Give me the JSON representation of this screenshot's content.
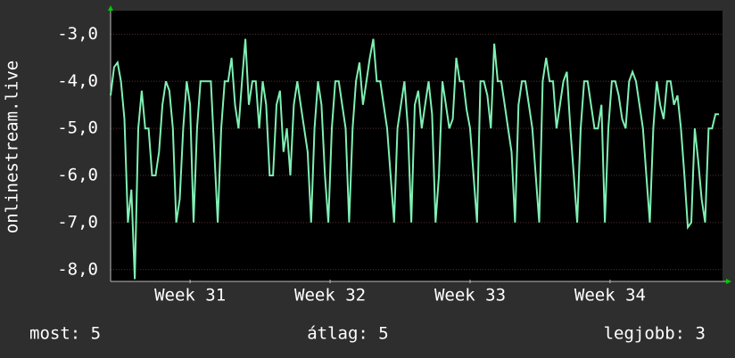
{
  "chart_data": {
    "type": "line",
    "ylabel": "onlinestream.live",
    "color": "#7ff0b4",
    "grid": true,
    "values": [
      -4.3,
      -3.7,
      -3.6,
      -4,
      -4.8,
      -7,
      -6.3,
      -8.2,
      -5,
      -4.2,
      -5,
      -5,
      -6,
      -6,
      -5.5,
      -4.5,
      -4,
      -4.2,
      -5,
      -7,
      -6.5,
      -5,
      -4,
      -4.5,
      -7,
      -5,
      -4,
      -4,
      -4,
      -4,
      -5.5,
      -7,
      -5,
      -4,
      -4,
      -3.5,
      -4.5,
      -5,
      -4,
      -3.1,
      -4.5,
      -4,
      -4,
      -5,
      -4,
      -4.5,
      -6,
      -6,
      -4.5,
      -4.2,
      -5.5,
      -5,
      -6,
      -4.5,
      -4,
      -4.5,
      -5,
      -5.5,
      -7,
      -5,
      -4,
      -4.5,
      -6,
      -7,
      -5,
      -4,
      -4,
      -4.5,
      -5,
      -7,
      -5,
      -4,
      -3.6,
      -4.5,
      -4,
      -3.5,
      -3.1,
      -4,
      -4,
      -4.5,
      -5,
      -6,
      -7,
      -5,
      -4.5,
      -4,
      -5,
      -7,
      -4.5,
      -4.2,
      -5,
      -4.5,
      -4,
      -4.7,
      -7,
      -6,
      -4,
      -4.5,
      -5,
      -4.8,
      -3.5,
      -4,
      -4,
      -4.6,
      -5,
      -6,
      -7,
      -4,
      -4,
      -4.3,
      -5,
      -3.2,
      -4,
      -4,
      -4.5,
      -5,
      -5.5,
      -7,
      -4.5,
      -4,
      -4,
      -4.5,
      -5,
      -6,
      -7,
      -4,
      -3.5,
      -4,
      -4,
      -5,
      -4.5,
      -4,
      -3.8,
      -5,
      -6,
      -7,
      -5,
      -4,
      -4,
      -4.5,
      -5,
      -5,
      -4.5,
      -7,
      -5,
      -4,
      -4,
      -4.3,
      -4.8,
      -5,
      -4,
      -3.8,
      -4,
      -4.5,
      -5,
      -6,
      -7,
      -5,
      -4,
      -4.5,
      -4.8,
      -4,
      -4,
      -4.5,
      -4.3,
      -5,
      -6,
      -7.1,
      -7,
      -5,
      -5.7,
      -6.5,
      -7,
      -5,
      -5,
      -4.7,
      -4.7
    ],
    "xlim": [
      0,
      176
    ],
    "xticks": [
      {
        "value": 23,
        "label": "Week 31"
      },
      {
        "value": 63.5,
        "label": "Week 32"
      },
      {
        "value": 104,
        "label": "Week 33"
      },
      {
        "value": 144.5,
        "label": "Week 34"
      }
    ],
    "ylim": [
      -8.25,
      -2.5
    ],
    "yticks": [
      {
        "value": -8,
        "label": "-8,0"
      },
      {
        "value": -7,
        "label": "-7,0"
      },
      {
        "value": -6,
        "label": "-6,0"
      },
      {
        "value": -5,
        "label": "-5,0"
      },
      {
        "value": -4,
        "label": "-4,0"
      },
      {
        "value": -3,
        "label": "-3,0"
      }
    ],
    "footer": [
      "most: 5",
      "átlag: 5",
      "legjobb: 3"
    ]
  }
}
